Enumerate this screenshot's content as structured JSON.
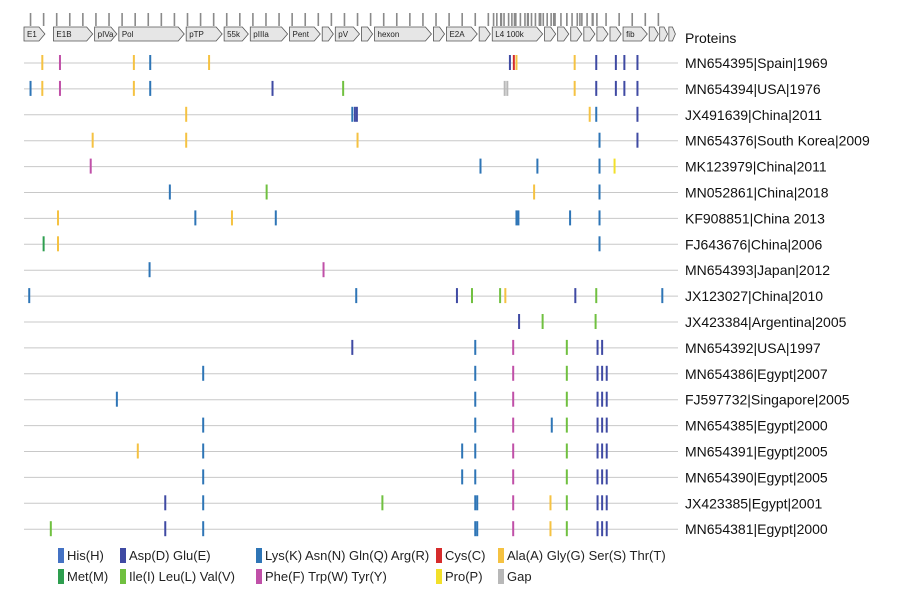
{
  "header_label": "Proteins",
  "colors": {
    "his": "#4472c4",
    "acid": "#3f4aa3",
    "basic": "#2e75b6",
    "met": "#2e9e4f",
    "hydro": "#70c040",
    "arom": "#c050a8",
    "cys": "#d62b2b",
    "small": "#f5c242",
    "pro": "#f2e02a",
    "gap": "#b8b8b8"
  },
  "genes": [
    {
      "label": "E1",
      "start": 0.0,
      "end": 3.2
    },
    {
      "label": "E1B",
      "start": 4.5,
      "end": 10.5
    },
    {
      "label": "pIVa",
      "start": 10.8,
      "end": 14.2
    },
    {
      "label": "Pol",
      "start": 14.5,
      "end": 24.5
    },
    {
      "label": "pTP",
      "start": 24.8,
      "end": 30.3
    },
    {
      "label": "55k",
      "start": 30.6,
      "end": 34.3
    },
    {
      "label": "pIIIa",
      "start": 34.6,
      "end": 40.3
    },
    {
      "label": "Pent",
      "start": 40.6,
      "end": 45.3
    },
    {
      "label": "",
      "start": 45.6,
      "end": 47.3
    },
    {
      "label": "pV",
      "start": 47.6,
      "end": 51.3
    },
    {
      "label": "",
      "start": 51.6,
      "end": 53.3
    },
    {
      "label": "hexon",
      "start": 53.6,
      "end": 62.3
    },
    {
      "label": "",
      "start": 62.6,
      "end": 64.3
    },
    {
      "label": "E2A",
      "start": 64.6,
      "end": 69.3
    },
    {
      "label": "",
      "start": 69.6,
      "end": 71.3
    },
    {
      "label": "L4 100k",
      "start": 71.6,
      "end": 79.3
    },
    {
      "label": "",
      "start": 79.6,
      "end": 81.3
    },
    {
      "label": "",
      "start": 81.6,
      "end": 83.3
    },
    {
      "label": "",
      "start": 83.6,
      "end": 85.3
    },
    {
      "label": "",
      "start": 85.6,
      "end": 87.3
    },
    {
      "label": "",
      "start": 87.6,
      "end": 89.3
    },
    {
      "label": "",
      "start": 89.6,
      "end": 91.3
    },
    {
      "label": "fib",
      "start": 91.6,
      "end": 95.3
    },
    {
      "label": "",
      "start": 95.6,
      "end": 97.0
    },
    {
      "label": "",
      "start": 97.2,
      "end": 98.4
    },
    {
      "label": "",
      "start": 98.6,
      "end": 99.6
    }
  ],
  "samples": [
    {
      "label": "MN654395|Spain|1969",
      "marks": [
        [
          2.8,
          "small"
        ],
        [
          5.5,
          "arom"
        ],
        [
          16.8,
          "small"
        ],
        [
          19.3,
          "basic"
        ],
        [
          28.3,
          "small"
        ],
        [
          74.3,
          "acid"
        ],
        [
          74.9,
          "cys"
        ],
        [
          75.3,
          "small"
        ],
        [
          84.2,
          "small"
        ],
        [
          87.5,
          "acid"
        ],
        [
          90.5,
          "acid"
        ],
        [
          91.8,
          "acid"
        ],
        [
          93.8,
          "acid"
        ]
      ]
    },
    {
      "label": "MN654394|USA|1976",
      "marks": [
        [
          1.0,
          "basic"
        ],
        [
          2.8,
          "small"
        ],
        [
          5.5,
          "arom"
        ],
        [
          16.8,
          "small"
        ],
        [
          19.3,
          "basic"
        ],
        [
          38.0,
          "acid"
        ],
        [
          48.8,
          "hydro"
        ],
        [
          73.5,
          "gap"
        ],
        [
          73.9,
          "gap"
        ],
        [
          84.2,
          "small"
        ],
        [
          87.5,
          "acid"
        ],
        [
          90.5,
          "acid"
        ],
        [
          91.8,
          "acid"
        ],
        [
          93.8,
          "acid"
        ]
      ]
    },
    {
      "label": "JX491639|China|2011",
      "marks": [
        [
          24.8,
          "small"
        ],
        [
          50.2,
          "basic"
        ],
        [
          50.6,
          "acid"
        ],
        [
          50.9,
          "acid"
        ],
        [
          86.5,
          "small"
        ],
        [
          87.5,
          "basic"
        ],
        [
          93.8,
          "acid"
        ]
      ]
    },
    {
      "label": "MN654376|South Korea|2009",
      "marks": [
        [
          10.5,
          "small"
        ],
        [
          24.8,
          "small"
        ],
        [
          51.0,
          "small"
        ],
        [
          88.0,
          "basic"
        ],
        [
          93.8,
          "acid"
        ]
      ]
    },
    {
      "label": "MK123979|China|2011",
      "marks": [
        [
          10.2,
          "arom"
        ],
        [
          69.8,
          "basic"
        ],
        [
          78.5,
          "basic"
        ],
        [
          88.0,
          "basic"
        ],
        [
          90.3,
          "pro"
        ]
      ]
    },
    {
      "label": "MN052861|China|2018",
      "marks": [
        [
          22.3,
          "basic"
        ],
        [
          37.1,
          "hydro"
        ],
        [
          78.0,
          "small"
        ],
        [
          88.0,
          "basic"
        ]
      ]
    },
    {
      "label": "KF908851|China 2013",
      "marks": [
        [
          5.2,
          "small"
        ],
        [
          26.2,
          "basic"
        ],
        [
          31.8,
          "small"
        ],
        [
          38.5,
          "basic"
        ],
        [
          75.3,
          "basic"
        ],
        [
          75.6,
          "basic"
        ],
        [
          83.5,
          "basic"
        ],
        [
          88.0,
          "basic"
        ]
      ]
    },
    {
      "label": "FJ643676|China|2006",
      "marks": [
        [
          3.0,
          "met"
        ],
        [
          5.2,
          "small"
        ],
        [
          88.0,
          "basic"
        ]
      ]
    },
    {
      "label": "MN654393|Japan|2012",
      "marks": [
        [
          19.2,
          "basic"
        ],
        [
          45.8,
          "arom"
        ]
      ]
    },
    {
      "label": "JX123027|China|2010",
      "marks": [
        [
          0.8,
          "basic"
        ],
        [
          50.8,
          "basic"
        ],
        [
          66.2,
          "acid"
        ],
        [
          68.5,
          "hydro"
        ],
        [
          72.8,
          "hydro"
        ],
        [
          73.6,
          "small"
        ],
        [
          84.3,
          "acid"
        ],
        [
          87.5,
          "hydro"
        ],
        [
          97.6,
          "basic"
        ]
      ]
    },
    {
      "label": "JX423384|Argentina|2005",
      "marks": [
        [
          75.7,
          "acid"
        ],
        [
          79.3,
          "hydro"
        ],
        [
          87.4,
          "hydro"
        ]
      ]
    },
    {
      "label": "MN654392|USA|1997",
      "marks": [
        [
          50.2,
          "acid"
        ],
        [
          69.0,
          "basic"
        ],
        [
          74.8,
          "arom"
        ],
        [
          83.0,
          "hydro"
        ],
        [
          87.7,
          "acid"
        ],
        [
          88.4,
          "acid"
        ]
      ]
    },
    {
      "label": "MN654386|Egypt|2007",
      "marks": [
        [
          27.4,
          "basic"
        ],
        [
          69.0,
          "basic"
        ],
        [
          74.8,
          "arom"
        ],
        [
          83.0,
          "hydro"
        ],
        [
          87.7,
          "acid"
        ],
        [
          88.4,
          "acid"
        ],
        [
          89.1,
          "acid"
        ]
      ]
    },
    {
      "label": "FJ597732|Singapore|2005",
      "marks": [
        [
          14.2,
          "basic"
        ],
        [
          69.0,
          "basic"
        ],
        [
          74.8,
          "arom"
        ],
        [
          83.0,
          "hydro"
        ],
        [
          87.7,
          "acid"
        ],
        [
          88.4,
          "acid"
        ],
        [
          89.1,
          "acid"
        ]
      ]
    },
    {
      "label": "MN654385|Egypt|2000",
      "marks": [
        [
          27.4,
          "basic"
        ],
        [
          69.0,
          "basic"
        ],
        [
          74.8,
          "arom"
        ],
        [
          80.7,
          "basic"
        ],
        [
          83.0,
          "hydro"
        ],
        [
          87.7,
          "acid"
        ],
        [
          88.4,
          "acid"
        ],
        [
          89.1,
          "acid"
        ]
      ]
    },
    {
      "label": "MN654391|Egypt|2005",
      "marks": [
        [
          17.4,
          "small"
        ],
        [
          27.4,
          "basic"
        ],
        [
          67.0,
          "basic"
        ],
        [
          69.0,
          "basic"
        ],
        [
          74.8,
          "arom"
        ],
        [
          83.0,
          "hydro"
        ],
        [
          87.7,
          "acid"
        ],
        [
          88.4,
          "acid"
        ],
        [
          89.1,
          "acid"
        ]
      ]
    },
    {
      "label": "MN654390|Egypt|2005",
      "marks": [
        [
          27.4,
          "basic"
        ],
        [
          67.0,
          "basic"
        ],
        [
          69.0,
          "basic"
        ],
        [
          74.8,
          "arom"
        ],
        [
          83.0,
          "hydro"
        ],
        [
          87.7,
          "acid"
        ],
        [
          88.4,
          "acid"
        ],
        [
          89.1,
          "acid"
        ]
      ]
    },
    {
      "label": "JX423385|Egypt|2001",
      "marks": [
        [
          21.6,
          "acid"
        ],
        [
          27.4,
          "basic"
        ],
        [
          54.8,
          "hydro"
        ],
        [
          69.0,
          "basic"
        ],
        [
          69.3,
          "basic"
        ],
        [
          74.8,
          "arom"
        ],
        [
          80.5,
          "small"
        ],
        [
          83.0,
          "hydro"
        ],
        [
          87.7,
          "acid"
        ],
        [
          88.4,
          "acid"
        ],
        [
          89.1,
          "acid"
        ]
      ]
    },
    {
      "label": "MN654381|Egypt|2000",
      "marks": [
        [
          4.1,
          "hydro"
        ],
        [
          21.6,
          "acid"
        ],
        [
          27.4,
          "basic"
        ],
        [
          69.0,
          "basic"
        ],
        [
          69.3,
          "basic"
        ],
        [
          74.8,
          "arom"
        ],
        [
          80.5,
          "small"
        ],
        [
          83.0,
          "hydro"
        ],
        [
          87.7,
          "acid"
        ],
        [
          88.4,
          "acid"
        ],
        [
          89.1,
          "acid"
        ]
      ]
    }
  ],
  "legend": [
    {
      "label": "His(H)",
      "color_key": "his"
    },
    {
      "label": "Asp(D) Glu(E)",
      "color_key": "acid"
    },
    {
      "label": "Lys(K) Asn(N) Gln(Q) Arg(R)",
      "color_key": "basic"
    },
    {
      "label": "Cys(C)",
      "color_key": "cys"
    },
    {
      "label": "Ala(A) Gly(G) Ser(S) Thr(T)",
      "color_key": "small"
    },
    {
      "label": "Met(M)",
      "color_key": "met"
    },
    {
      "label": "Ile(I) Leu(L) Val(V)",
      "color_key": "hydro"
    },
    {
      "label": "Phe(F) Trp(W) Tyr(Y)",
      "color_key": "arom"
    },
    {
      "label": "Pro(P)",
      "color_key": "pro"
    },
    {
      "label": "Gap",
      "color_key": "gap"
    }
  ]
}
